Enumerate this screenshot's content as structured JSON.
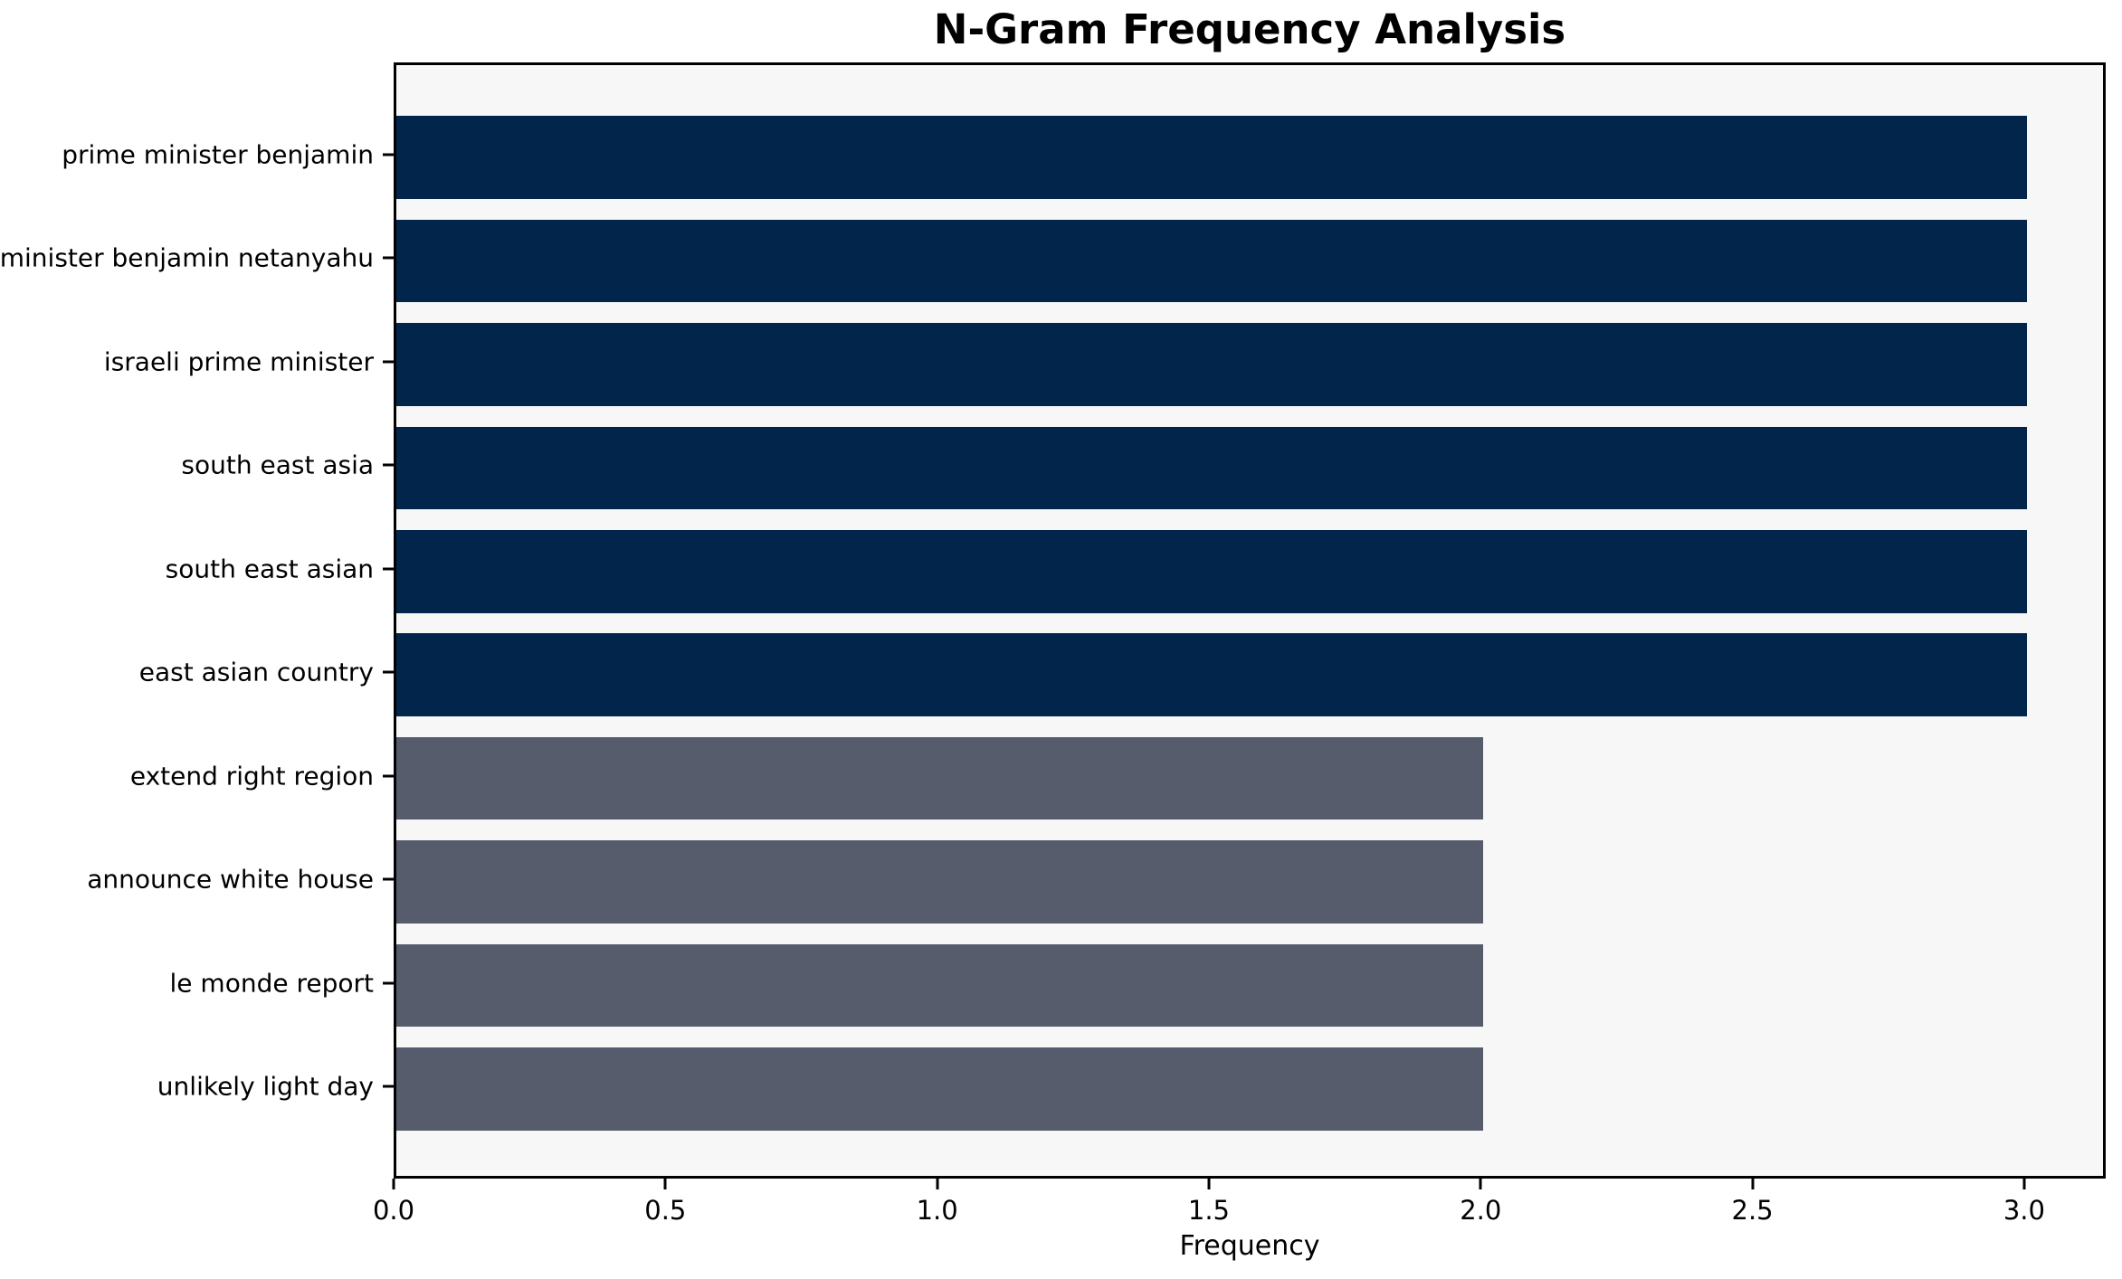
{
  "chart_data": {
    "type": "bar",
    "orientation": "horizontal",
    "title": "N-Gram Frequency Analysis",
    "xlabel": "Frequency",
    "ylabel": "",
    "categories": [
      "prime minister benjamin",
      "minister benjamin netanyahu",
      "israeli prime minister",
      "south east asia",
      "south east asian",
      "east asian country",
      "extend right region",
      "announce white house",
      "le monde report",
      "unlikely light day"
    ],
    "values": [
      3,
      3,
      3,
      3,
      3,
      3,
      2,
      2,
      2,
      2
    ],
    "bar_colors": [
      "#02254C",
      "#02254C",
      "#02254C",
      "#02254C",
      "#02254C",
      "#02254C",
      "#565C6C",
      "#565C6C",
      "#565C6C",
      "#565C6C"
    ],
    "xticks": [
      "0.0",
      "0.5",
      "1.0",
      "1.5",
      "2.0",
      "2.5",
      "3.0"
    ],
    "xtick_values": [
      0,
      0.5,
      1.0,
      1.5,
      2.0,
      2.5,
      3.0
    ],
    "xlim": [
      0,
      3.15
    ],
    "grid": false,
    "legend": null,
    "colors": {
      "high_frequency_bar": "#02254C",
      "low_frequency_bar": "#565C6C",
      "plot_background": "#f7f7f7",
      "figure_background": "#ffffff",
      "axis": "#000000",
      "text": "#000000"
    }
  }
}
